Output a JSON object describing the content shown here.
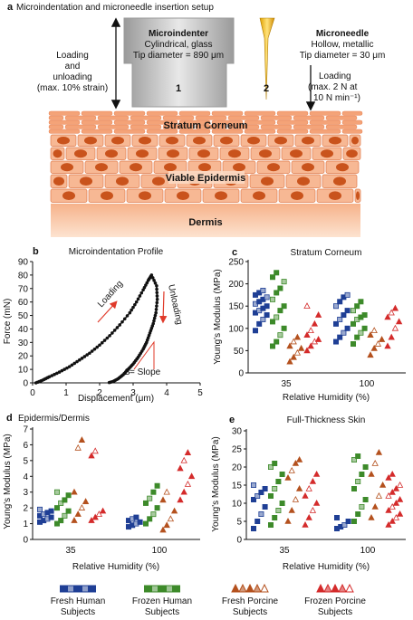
{
  "panel_a": {
    "title": "Microindentation and microneedle insertion setup",
    "panel_letter": "a",
    "indenter": {
      "name": "Microindenter",
      "line1": "Cylindrical, glass",
      "line2": "Tip diameter = 890 μm",
      "number": "1"
    },
    "needle": {
      "name": "Microneedle",
      "line1": "Hollow, metallic",
      "line2": "Tip diameter = 30 μm",
      "number": "2"
    },
    "left_note": [
      "Loading",
      "and",
      "unloading",
      "(max. 10% strain)"
    ],
    "right_note": [
      "Loading",
      "(max. 2 N at",
      "10 N min⁻¹)"
    ],
    "layers": {
      "sc": "Stratum Corneum",
      "ve": "Viable Epidermis",
      "dermis": "Dermis"
    }
  },
  "panel_b": {
    "letter": "b",
    "title": "Microindentation Profile",
    "ylabel": "Force (mN)",
    "xlabel": "Displacement (μm)",
    "loading": "Loading",
    "unloading": "Unloading",
    "slope_s": "S",
    "slope_rest": " = Slope",
    "yticks": [
      "0",
      "10",
      "20",
      "30",
      "40",
      "50",
      "60",
      "70",
      "80",
      "90"
    ],
    "xticks": [
      "0",
      "1",
      "2",
      "3",
      "4",
      "5"
    ]
  },
  "panel_c": {
    "letter": "c",
    "title": "Stratum Corneum",
    "ylabel": "Young's Modulus (MPa)",
    "xlabel": "Relative Humidity  (%)",
    "yticks": [
      "0",
      "50",
      "100",
      "150",
      "200",
      "250"
    ],
    "xticks": [
      "35",
      "100"
    ]
  },
  "panel_d": {
    "letter": "d",
    "title": "Epidermis/Dermis",
    "ylabel": "Young's Modulus (MPa)",
    "xlabel": "Relative Humidity  (%)",
    "yticks": [
      "0",
      "1",
      "2",
      "3",
      "4",
      "5",
      "6",
      "7"
    ],
    "xticks": [
      "35",
      "100"
    ]
  },
  "panel_e": {
    "letter": "e",
    "title": "Full-Thickness Skin",
    "ylabel": "Young's Modulus (MPa)",
    "xlabel": "Relative Humidity  (%)",
    "yticks": [
      "0",
      "5",
      "10",
      "15",
      "20",
      "25",
      "30"
    ],
    "xticks": [
      "35",
      "100"
    ]
  },
  "legend": [
    {
      "line1": "Fresh Human",
      "line2": "Subjects",
      "color": "#1f3f95",
      "shape": "square"
    },
    {
      "line1": "Frozen Human",
      "line2": "Subjects",
      "color": "#3d8a2a",
      "shape": "square"
    },
    {
      "line1": "Fresh Porcine",
      "line2": "Subjects",
      "color": "#b4511e",
      "shape": "triangle"
    },
    {
      "line1": "Frozen Porcine",
      "line2": "Subjects",
      "color": "#d42b2b",
      "shape": "triangle"
    }
  ],
  "chart_data": [
    {
      "type": "line",
      "panel": "b",
      "title": "Microindentation Profile",
      "xlabel": "Displacement (μm)",
      "ylabel": "Force (mN)",
      "xlim": [
        0,
        5
      ],
      "ylim": [
        0,
        90
      ],
      "series": [
        {
          "name": "Loading",
          "x": [
            0.1,
            0.3,
            0.5,
            0.8,
            1.1,
            1.4,
            1.7,
            2.0,
            2.3,
            2.6,
            2.9,
            3.1,
            3.3,
            3.45,
            3.55
          ],
          "y": [
            0,
            2,
            4.5,
            8,
            12,
            17,
            22,
            28,
            35,
            43,
            52,
            60,
            69,
            76,
            80
          ]
        },
        {
          "name": "Unloading",
          "x": [
            3.55,
            3.7,
            3.72,
            3.68,
            3.6,
            3.5,
            3.4,
            3.3,
            3.15,
            3.0,
            2.85,
            2.7,
            2.55,
            2.4,
            2.25
          ],
          "y": [
            80,
            72,
            62,
            52,
            44,
            37,
            30,
            25,
            19,
            14,
            10,
            6,
            3,
            1,
            0
          ]
        }
      ]
    },
    {
      "type": "scatter",
      "panel": "c",
      "title": "Stratum Corneum",
      "ylabel": "Young's Modulus (MPa)",
      "xlabel": "Relative Humidity  (%)",
      "ylim": [
        0,
        250
      ],
      "categories": [
        "35",
        "100"
      ],
      "series": [
        {
          "name": "Fresh Human Subjects",
          "values_35": [
            95,
            110,
            120,
            130,
            135,
            140,
            145,
            150,
            155,
            160,
            165,
            170,
            175,
            180,
            185
          ],
          "values_100": [
            70,
            80,
            90,
            100,
            110,
            120,
            130,
            140,
            150,
            160,
            170,
            175
          ]
        },
        {
          "name": "Frozen Human Subjects",
          "values_35": [
            60,
            70,
            85,
            100,
            115,
            125,
            140,
            150,
            165,
            180,
            190,
            205,
            215,
            225
          ],
          "values_100": [
            65,
            80,
            90,
            100,
            110,
            120,
            125,
            130,
            140,
            150,
            160
          ]
        },
        {
          "name": "Fresh Porcine Subjects",
          "values_35": [
            25,
            35,
            45,
            55,
            60,
            70,
            80
          ],
          "values_100": [
            40,
            55,
            65,
            75,
            85,
            95
          ]
        },
        {
          "name": "Frozen Porcine Subjects",
          "values_35": [
            50,
            60,
            70,
            75,
            85,
            95,
            110,
            130,
            150
          ],
          "values_100": [
            60,
            80,
            100,
            115,
            125,
            135,
            145
          ]
        }
      ]
    },
    {
      "type": "scatter",
      "panel": "d",
      "title": "Epidermis/Dermis",
      "ylabel": "Young's Modulus (MPa)",
      "xlabel": "Relative Humidity  (%)",
      "ylim": [
        0,
        7
      ],
      "categories": [
        "35",
        "100"
      ],
      "series": [
        {
          "name": "Fresh Human Subjects",
          "values_35": [
            1.1,
            1.2,
            1.3,
            1.4,
            1.5,
            1.6,
            1.7,
            1.8,
            1.9
          ],
          "values_100": [
            0.8,
            0.9,
            1.0,
            1.1,
            1.2,
            1.3,
            1.4
          ]
        },
        {
          "name": "Frozen Human Subjects",
          "values_35": [
            1.0,
            1.2,
            1.5,
            1.8,
            2.0,
            2.3,
            2.5,
            2.8,
            3.0
          ],
          "values_100": [
            1.0,
            1.3,
            1.6,
            2.0,
            2.3,
            2.6,
            3.0,
            3.4
          ]
        },
        {
          "name": "Fresh Porcine Subjects",
          "values_35": [
            1.2,
            1.6,
            2.0,
            2.4,
            3.0,
            5.8,
            6.3
          ],
          "values_100": [
            0.6,
            0.9,
            1.3,
            1.8,
            2.5,
            3.0
          ]
        },
        {
          "name": "Frozen Porcine Subjects",
          "values_35": [
            1.2,
            1.4,
            1.6,
            1.8,
            5.3,
            5.6
          ],
          "values_100": [
            2.5,
            3.0,
            3.5,
            4.0,
            4.5,
            5.0,
            5.5
          ]
        }
      ]
    },
    {
      "type": "scatter",
      "panel": "e",
      "title": "Full-Thickness Skin",
      "ylabel": "Young's Modulus (MPa)",
      "xlabel": "Relative Humidity  (%)",
      "ylim": [
        0,
        30
      ],
      "categories": [
        "35",
        "100"
      ],
      "series": [
        {
          "name": "Fresh Human Subjects",
          "values_35": [
            3,
            5,
            7,
            9,
            11,
            12,
            13,
            14,
            15
          ],
          "values_100": [
            3,
            3.5,
            4,
            5,
            6
          ]
        },
        {
          "name": "Frozen Human Subjects",
          "values_35": [
            4,
            6,
            8,
            10,
            12,
            14,
            16,
            18,
            20,
            21
          ],
          "values_100": [
            5,
            7,
            9,
            11,
            14,
            16,
            18,
            20,
            22,
            23
          ]
        },
        {
          "name": "Fresh Porcine Subjects",
          "values_35": [
            5,
            8,
            11,
            14,
            17,
            19,
            21,
            22
          ],
          "values_100": [
            6,
            9,
            12,
            15,
            18,
            21,
            24
          ]
        },
        {
          "name": "Frozen Porcine Subjects",
          "values_35": [
            4,
            6,
            8,
            10,
            12,
            14,
            16,
            18
          ],
          "values_100": [
            4,
            5,
            6,
            7,
            8,
            9,
            10,
            11,
            12,
            13,
            14,
            15,
            17,
            18
          ]
        }
      ]
    }
  ]
}
